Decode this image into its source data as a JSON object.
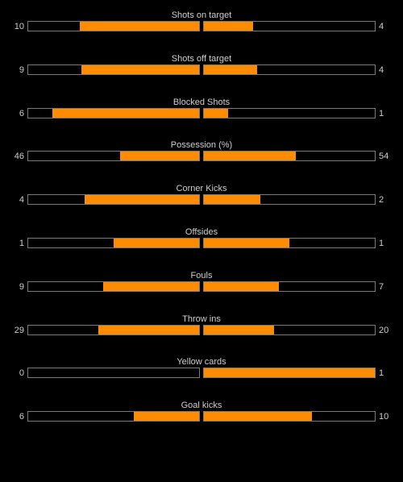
{
  "colors": {
    "background": "#000000",
    "bar_fill": "#ff8c00",
    "bar_border": "#7a7a7a",
    "text": "#cfcfcf"
  },
  "stats": [
    {
      "label": "Shots on target",
      "home": "10",
      "away": "4",
      "home_fill": 0.7,
      "away_fill": 0.29
    },
    {
      "label": "Shots off target",
      "home": "9",
      "away": "4",
      "home_fill": 0.69,
      "away_fill": 0.31
    },
    {
      "label": "Blocked Shots",
      "home": "6",
      "away": "1",
      "home_fill": 0.86,
      "away_fill": 0.14
    },
    {
      "label": "Possession (%)",
      "home": "46",
      "away": "54",
      "home_fill": 0.46,
      "away_fill": 0.54
    },
    {
      "label": "Corner Kicks",
      "home": "4",
      "away": "2",
      "home_fill": 0.67,
      "away_fill": 0.33
    },
    {
      "label": "Offsides",
      "home": "1",
      "away": "1",
      "home_fill": 0.5,
      "away_fill": 0.5
    },
    {
      "label": "Fouls",
      "home": "9",
      "away": "7",
      "home_fill": 0.56,
      "away_fill": 0.44
    },
    {
      "label": "Throw ins",
      "home": "29",
      "away": "20",
      "home_fill": 0.59,
      "away_fill": 0.41
    },
    {
      "label": "Yellow cards",
      "home": "0",
      "away": "1",
      "home_fill": 0.0,
      "away_fill": 1.0
    },
    {
      "label": "Goal kicks",
      "home": "6",
      "away": "10",
      "home_fill": 0.38,
      "away_fill": 0.63
    }
  ]
}
